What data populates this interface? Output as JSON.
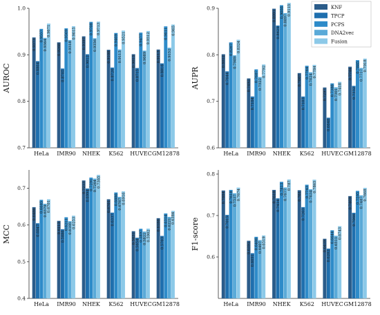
{
  "legend": {
    "items": [
      {
        "label": "KNF",
        "color": "#2B5C8A"
      },
      {
        "label": "TPCP",
        "color": "#1F6FAE"
      },
      {
        "label": "PCPS",
        "color": "#2E8BC9"
      },
      {
        "label": "DNA2vec",
        "color": "#5AAAD8"
      },
      {
        "label": "Fusion",
        "color": "#8CC9E8"
      }
    ]
  },
  "chart_data": [
    {
      "type": "bar",
      "ylabel": "AUROC",
      "ylim": [
        0.7,
        1.0
      ],
      "yticks": [
        "0.7",
        "0.8",
        "0.9",
        "1.0"
      ],
      "categories": [
        "HeLa",
        "IMR90",
        "NHEK",
        "K562",
        "HUVEC",
        "GM12878"
      ],
      "series": [
        {
          "name": "KNF",
          "values": [
            0.9373,
            0.9268,
            0.9397,
            0.9108,
            0.9013,
            0.9113
          ],
          "labels": [
            "0.9373",
            "0.9268",
            "0.9397",
            "0.9108",
            "0.9013",
            "0.9113"
          ]
        },
        {
          "name": "TPCP",
          "values": [
            0.8864,
            0.8705,
            0.9012,
            0.8726,
            0.8715,
            0.8816
          ],
          "labels": [
            "0.8864",
            "0.8705",
            "0.9012",
            "0.8726",
            "0.8715",
            "0.8816"
          ]
        },
        {
          "name": "PCPS",
          "values": [
            0.9557,
            0.9569,
            0.9708,
            0.9469,
            0.9477,
            0.9611
          ],
          "labels": [
            "0.9557",
            "0.9569",
            "0.9708",
            "0.9469",
            "0.9477",
            "0.9611"
          ]
        },
        {
          "name": "DNA2vec",
          "values": [
            0.9364,
            0.9318,
            0.9356,
            0.9113,
            0.9089,
            0.9152
          ],
          "labels": [
            "0.9364",
            "0.9318",
            "0.9356",
            "0.9113",
            "0.9089",
            "0.9152"
          ]
        },
        {
          "name": "Fusion",
          "values": [
            0.9671,
            0.9615,
            0.9713,
            0.9521,
            0.9512,
            0.965
          ],
          "labels": [
            "0.9671",
            "0.9615",
            "0.9713",
            "0.9521",
            "0.9512",
            "0.965"
          ]
        }
      ]
    },
    {
      "type": "bar",
      "ylabel": "AUPR",
      "ylim": [
        0.6,
        0.9
      ],
      "yticks": [
        "0.6",
        "0.7",
        "0.8",
        "0.9"
      ],
      "categories": [
        "HeLa",
        "IMR90",
        "NHEK",
        "K562",
        "HUVEC",
        "GM12878"
      ],
      "series": [
        {
          "name": "KNF",
          "values": [
            0.8012,
            0.7492,
            0.8991,
            0.7607,
            0.7297,
            0.7744
          ],
          "labels": [
            "0.8012",
            "0.7492",
            "0.8991",
            "0.7607",
            "0.7297",
            "0.7744"
          ]
        },
        {
          "name": "TPCP",
          "values": [
            0.7644,
            0.7104,
            0.8629,
            0.7103,
            0.6648,
            0.7332
          ],
          "labels": [
            "0.7644",
            "0.7104",
            "0.8629",
            "0.7103",
            "0.6648",
            "0.7332"
          ]
        },
        {
          "name": "PCPS",
          "values": [
            0.8267,
            0.7687,
            0.9066,
            0.7764,
            0.7386,
            0.7885
          ],
          "labels": [
            "0.8267",
            "0.7687",
            "0.9066",
            "0.7764",
            "0.7386",
            "0.7885"
          ]
        },
        {
          "name": "DNA2vec",
          "values": [
            0.7989,
            0.7522,
            0.8897,
            0.7624,
            0.7301,
            0.7717
          ],
          "labels": [
            "0.7989",
            "0.7522",
            "0.8897",
            "0.7624",
            "0.7301",
            "0.7717"
          ]
        },
        {
          "name": "Fusion",
          "values": [
            0.8324,
            0.7792,
            0.9115,
            0.7784,
            0.7418,
            0.7918
          ],
          "labels": [
            "0.8324",
            "0.7792",
            "0.9115",
            "0.7784",
            "0.7418",
            "0.7918"
          ]
        }
      ]
    },
    {
      "type": "bar",
      "ylabel": "MCC",
      "ylim": [
        0.4,
        0.75
      ],
      "yticks": [
        "0.4",
        "0.5",
        "0.6",
        "0.7"
      ],
      "categories": [
        "HeLa",
        "IMR90",
        "NHEK",
        "K562",
        "HUVEC",
        "GM12878"
      ],
      "series": [
        {
          "name": "KNF",
          "values": [
            0.6486,
            0.6113,
            0.7213,
            0.6701,
            0.5831,
            0.6186
          ],
          "labels": [
            "0.6486",
            "0.6113",
            "0.7213",
            "0.6701",
            "0.5831",
            "0.6186"
          ]
        },
        {
          "name": "TPCP",
          "values": [
            0.6047,
            0.5886,
            0.6994,
            0.6337,
            0.5654,
            0.5703
          ],
          "labels": [
            "0.6047",
            "0.5886",
            "0.6994",
            "0.6337",
            "0.5654",
            "0.5703"
          ]
        },
        {
          "name": "PCPS",
          "values": [
            0.6685,
            0.6211,
            0.7291,
            0.6886,
            0.5897,
            0.6314
          ],
          "labels": [
            "0.6685",
            "0.6211",
            "0.7291",
            "0.6886",
            "0.5897",
            "0.6314"
          ]
        },
        {
          "name": "DNA2vec",
          "values": [
            0.6579,
            0.6105,
            0.7264,
            0.6767,
            0.5822,
            0.6221
          ],
          "labels": [
            "0.6579",
            "0.6105",
            "0.7264",
            "0.6767",
            "0.5822",
            "0.6221"
          ]
        },
        {
          "name": "Fusion",
          "values": [
            0.6701,
            0.6253,
            0.7365,
            0.6916,
            0.5902,
            0.6384
          ],
          "labels": [
            "0.6701",
            "0.6253",
            "0.7365",
            "0.6916",
            "0.5902",
            "0.6384"
          ]
        }
      ]
    },
    {
      "type": "bar",
      "ylabel": "F1-score",
      "ylim": [
        0.5,
        0.81
      ],
      "yticks": [
        "0.6",
        "0.7",
        "0.8"
      ],
      "categories": [
        "HeLa",
        "IMR90",
        "NHEK",
        "K562",
        "HUVEC",
        "GM12878"
      ],
      "series": [
        {
          "name": "KNF",
          "values": [
            0.7604,
            0.6391,
            0.7618,
            0.761,
            0.6439,
            0.7469
          ],
          "labels": [
            "0.7604",
            "0.6391",
            "0.7618",
            "0.761",
            "0.6439",
            "0.7469"
          ]
        },
        {
          "name": "TPCP",
          "values": [
            0.7015,
            0.6091,
            0.7414,
            0.7203,
            0.6202,
            0.7066
          ],
          "labels": [
            "0.7015",
            "0.6091",
            "0.7414",
            "0.7203",
            "0.6202",
            "0.7066"
          ]
        },
        {
          "name": "PCPS",
          "values": [
            0.7618,
            0.6486,
            0.7813,
            0.7743,
            0.6644,
            0.7595
          ],
          "labels": [
            "0.7618",
            "0.6486",
            "0.7813",
            "0.7743",
            "0.6644",
            "0.7595"
          ]
        },
        {
          "name": "DNA2vec",
          "values": [
            0.7537,
            0.6407,
            0.7677,
            0.7634,
            0.6511,
            0.7487
          ],
          "labels": [
            "0.7537",
            "0.6407",
            "0.7677",
            "0.7634",
            "0.6511",
            "0.7487"
          ]
        },
        {
          "name": "Fusion",
          "values": [
            0.7674,
            0.6519,
            0.787,
            0.7865,
            0.6743,
            0.7668
          ],
          "labels": [
            "0.7674",
            "0.6519",
            "0.787",
            "0.7865",
            "0.6743",
            "0.7668"
          ]
        }
      ]
    }
  ]
}
